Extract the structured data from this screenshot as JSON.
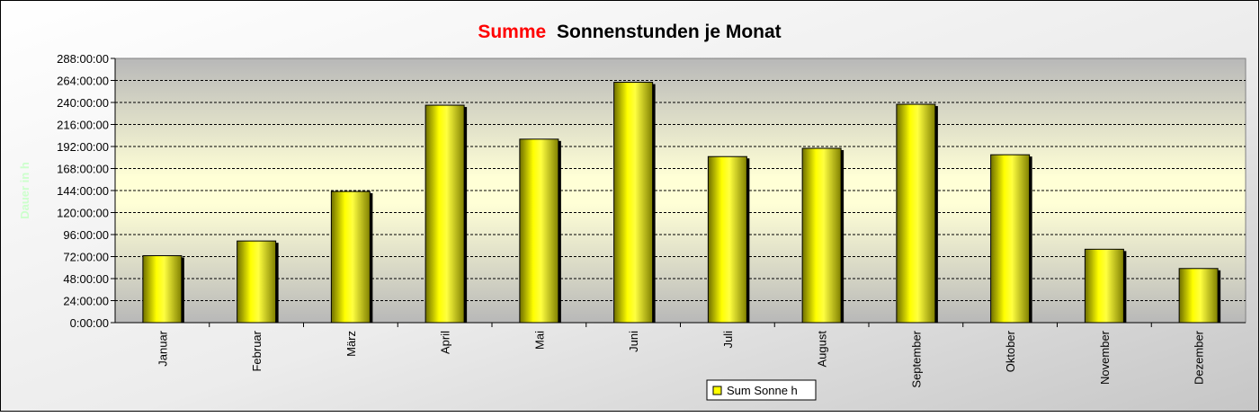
{
  "chart_data": {
    "type": "bar",
    "title_highlight": "Summe",
    "title_rest": "Sonnenstunden je Monat",
    "ylabel": "Dauer in h",
    "xlabel": "",
    "categories": [
      "Januar",
      "Februar",
      "März",
      "April",
      "Mai",
      "Juni",
      "Juli",
      "August",
      "September",
      "Oktober",
      "November",
      "Dezember"
    ],
    "series": [
      {
        "name": "Sum Sonne h",
        "values": [
          73,
          89,
          143,
          237,
          200,
          262,
          181,
          190,
          238,
          183,
          80,
          59
        ]
      }
    ],
    "ylim": [
      0,
      288
    ],
    "yticks": [
      0,
      24,
      48,
      72,
      96,
      120,
      144,
      168,
      192,
      216,
      240,
      264,
      288
    ],
    "ytick_labels": [
      "0:00:00",
      "24:00:00",
      "48:00:00",
      "72:00:00",
      "96:00:00",
      "120:00:00",
      "144:00:00",
      "168:00:00",
      "192:00:00",
      "216:00:00",
      "240:00:00",
      "264:00:00",
      "288:00:00"
    ],
    "grid": true,
    "legend_position": "bottom",
    "colors": {
      "bar": "#ffff00",
      "title_highlight": "#ff0000",
      "ylabel": "#ccffcc",
      "grid": "#000000"
    }
  }
}
